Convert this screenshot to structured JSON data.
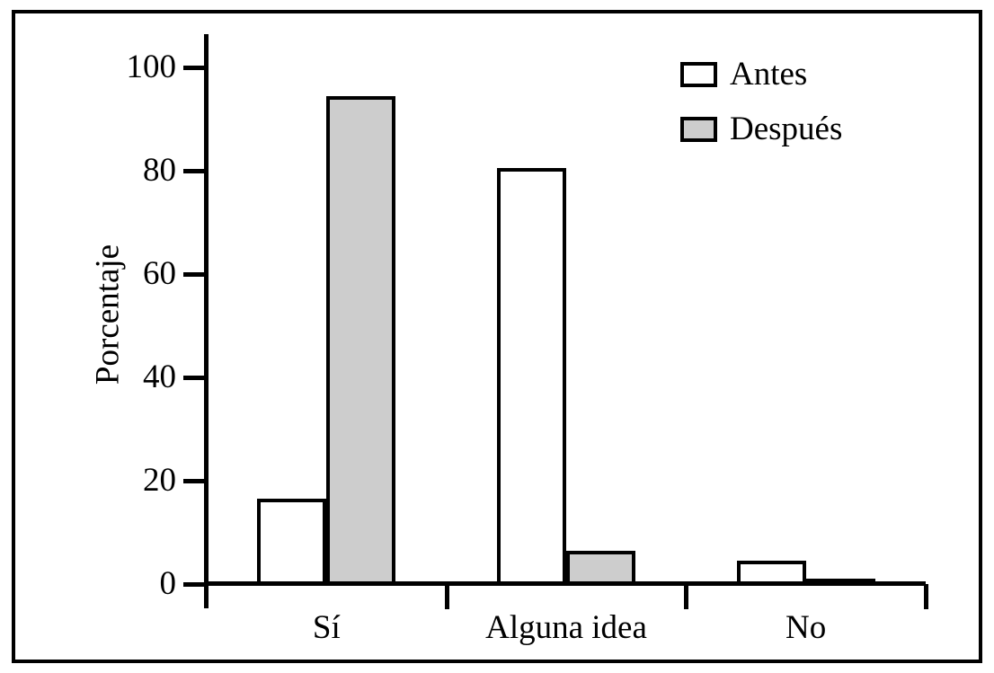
{
  "chart_data": {
    "type": "bar",
    "title": "",
    "categories": [
      "Sí",
      "Alguna idea",
      "No"
    ],
    "series": [
      {
        "name": "Antes",
        "color": "#ffffff",
        "values": [
          16,
          80,
          4
        ]
      },
      {
        "name": "Después",
        "color": "#cdcdcd",
        "values": [
          94,
          6,
          0.5
        ]
      }
    ],
    "xlabel": "",
    "ylabel": "Porcentaje",
    "yticks": [
      0,
      20,
      40,
      60,
      80,
      100
    ],
    "ylim": [
      0,
      100
    ],
    "grid": false,
    "legend_position": "top-right",
    "bar_border_color": "#000000",
    "axis_color": "#000000"
  }
}
